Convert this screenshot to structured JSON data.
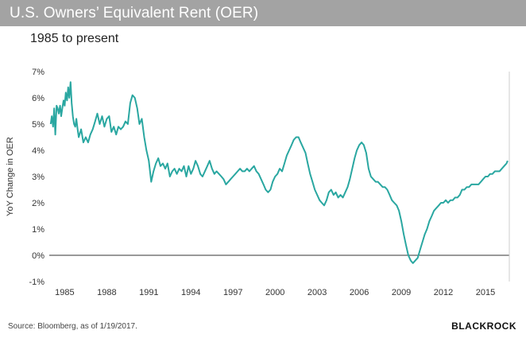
{
  "header": {
    "title": "U.S. Owners’ Equivalent Rent (OER)",
    "subtitle": "1985 to present"
  },
  "footer": {
    "source": "Source: Bloomberg, as of 1/19/2017.",
    "brand": "BlackRock"
  },
  "colors": {
    "line": "#2aa7a1",
    "title_bar": "#a3a3a3",
    "zero_line": "#333333"
  },
  "chart_data": {
    "type": "line",
    "title": "U.S. Owners’ Equivalent Rent (OER)",
    "subtitle": "1985 to present",
    "ylabel": "YoY Change in OER",
    "xlabel": "",
    "xlim": [
      1983.9,
      2016.7
    ],
    "ylim": [
      -1,
      7
    ],
    "x_ticks": [
      1985,
      1988,
      1991,
      1994,
      1997,
      2000,
      2003,
      2006,
      2009,
      2012,
      2015
    ],
    "x_tick_labels": [
      "1985",
      "1988",
      "1991",
      "1994",
      "1997",
      "2000",
      "2003",
      "2006",
      "2009",
      "2012",
      "2015"
    ],
    "y_ticks": [
      -1,
      0,
      1,
      2,
      3,
      4,
      5,
      6,
      7
    ],
    "y_tick_labels": [
      "-1%",
      "0%",
      "1%",
      "2%",
      "3%",
      "4%",
      "5%",
      "6%",
      "7%"
    ],
    "grid": false,
    "zero_line": true,
    "series": [
      {
        "values": [
          [
            1984.0,
            5.0
          ],
          [
            1984.08,
            5.3
          ],
          [
            1984.17,
            4.9
          ],
          [
            1984.25,
            5.6
          ],
          [
            1984.33,
            4.6
          ],
          [
            1984.42,
            5.7
          ],
          [
            1984.5,
            5.6
          ],
          [
            1984.58,
            5.4
          ],
          [
            1984.67,
            5.7
          ],
          [
            1984.75,
            5.3
          ],
          [
            1984.83,
            5.6
          ],
          [
            1984.92,
            5.9
          ],
          [
            1985.0,
            5.7
          ],
          [
            1985.08,
            6.2
          ],
          [
            1985.17,
            5.9
          ],
          [
            1985.25,
            6.4
          ],
          [
            1985.33,
            6.0
          ],
          [
            1985.42,
            6.6
          ],
          [
            1985.5,
            5.8
          ],
          [
            1985.58,
            5.3
          ],
          [
            1985.67,
            5.0
          ],
          [
            1985.75,
            4.9
          ],
          [
            1985.83,
            5.2
          ],
          [
            1985.92,
            4.8
          ],
          [
            1986.0,
            4.5
          ],
          [
            1986.17,
            4.8
          ],
          [
            1986.33,
            4.3
          ],
          [
            1986.5,
            4.5
          ],
          [
            1986.67,
            4.3
          ],
          [
            1986.83,
            4.6
          ],
          [
            1987.0,
            4.8
          ],
          [
            1987.17,
            5.1
          ],
          [
            1987.33,
            5.4
          ],
          [
            1987.5,
            5.0
          ],
          [
            1987.67,
            5.3
          ],
          [
            1987.83,
            4.9
          ],
          [
            1988.0,
            5.2
          ],
          [
            1988.17,
            5.3
          ],
          [
            1988.33,
            4.7
          ],
          [
            1988.5,
            4.9
          ],
          [
            1988.67,
            4.6
          ],
          [
            1988.83,
            4.9
          ],
          [
            1989.0,
            4.8
          ],
          [
            1989.17,
            4.9
          ],
          [
            1989.33,
            5.1
          ],
          [
            1989.5,
            5.0
          ],
          [
            1989.67,
            5.8
          ],
          [
            1989.83,
            6.1
          ],
          [
            1990.0,
            6.0
          ],
          [
            1990.17,
            5.6
          ],
          [
            1990.33,
            5.0
          ],
          [
            1990.5,
            5.2
          ],
          [
            1990.67,
            4.5
          ],
          [
            1990.83,
            4.0
          ],
          [
            1991.0,
            3.6
          ],
          [
            1991.17,
            2.8
          ],
          [
            1991.33,
            3.2
          ],
          [
            1991.5,
            3.5
          ],
          [
            1991.67,
            3.7
          ],
          [
            1991.83,
            3.4
          ],
          [
            1992.0,
            3.5
          ],
          [
            1992.17,
            3.3
          ],
          [
            1992.33,
            3.5
          ],
          [
            1992.5,
            3.0
          ],
          [
            1992.67,
            3.2
          ],
          [
            1992.83,
            3.3
          ],
          [
            1993.0,
            3.1
          ],
          [
            1993.17,
            3.3
          ],
          [
            1993.33,
            3.2
          ],
          [
            1993.5,
            3.4
          ],
          [
            1993.67,
            3.0
          ],
          [
            1993.83,
            3.4
          ],
          [
            1994.0,
            3.1
          ],
          [
            1994.17,
            3.3
          ],
          [
            1994.33,
            3.6
          ],
          [
            1994.5,
            3.4
          ],
          [
            1994.67,
            3.1
          ],
          [
            1994.83,
            3.0
          ],
          [
            1995.0,
            3.2
          ],
          [
            1995.17,
            3.4
          ],
          [
            1995.33,
            3.6
          ],
          [
            1995.5,
            3.3
          ],
          [
            1995.67,
            3.1
          ],
          [
            1995.83,
            3.2
          ],
          [
            1996.0,
            3.1
          ],
          [
            1996.17,
            3.0
          ],
          [
            1996.33,
            2.9
          ],
          [
            1996.5,
            2.7
          ],
          [
            1996.67,
            2.8
          ],
          [
            1996.83,
            2.9
          ],
          [
            1997.0,
            3.0
          ],
          [
            1997.17,
            3.1
          ],
          [
            1997.33,
            3.2
          ],
          [
            1997.5,
            3.3
          ],
          [
            1997.67,
            3.2
          ],
          [
            1997.83,
            3.2
          ],
          [
            1998.0,
            3.3
          ],
          [
            1998.17,
            3.2
          ],
          [
            1998.33,
            3.3
          ],
          [
            1998.5,
            3.4
          ],
          [
            1998.67,
            3.2
          ],
          [
            1998.83,
            3.1
          ],
          [
            1999.0,
            2.9
          ],
          [
            1999.17,
            2.7
          ],
          [
            1999.33,
            2.5
          ],
          [
            1999.5,
            2.4
          ],
          [
            1999.67,
            2.5
          ],
          [
            1999.83,
            2.8
          ],
          [
            2000.0,
            3.0
          ],
          [
            2000.17,
            3.1
          ],
          [
            2000.33,
            3.3
          ],
          [
            2000.5,
            3.2
          ],
          [
            2000.67,
            3.5
          ],
          [
            2000.83,
            3.8
          ],
          [
            2001.0,
            4.0
          ],
          [
            2001.17,
            4.2
          ],
          [
            2001.33,
            4.4
          ],
          [
            2001.5,
            4.5
          ],
          [
            2001.67,
            4.5
          ],
          [
            2001.83,
            4.3
          ],
          [
            2002.0,
            4.1
          ],
          [
            2002.17,
            3.9
          ],
          [
            2002.33,
            3.5
          ],
          [
            2002.5,
            3.1
          ],
          [
            2002.67,
            2.8
          ],
          [
            2002.83,
            2.5
          ],
          [
            2003.0,
            2.3
          ],
          [
            2003.17,
            2.1
          ],
          [
            2003.33,
            2.0
          ],
          [
            2003.5,
            1.9
          ],
          [
            2003.67,
            2.1
          ],
          [
            2003.83,
            2.4
          ],
          [
            2004.0,
            2.5
          ],
          [
            2004.17,
            2.3
          ],
          [
            2004.33,
            2.4
          ],
          [
            2004.5,
            2.2
          ],
          [
            2004.67,
            2.3
          ],
          [
            2004.83,
            2.2
          ],
          [
            2005.0,
            2.4
          ],
          [
            2005.17,
            2.6
          ],
          [
            2005.33,
            2.9
          ],
          [
            2005.5,
            3.3
          ],
          [
            2005.67,
            3.7
          ],
          [
            2005.83,
            4.0
          ],
          [
            2006.0,
            4.2
          ],
          [
            2006.17,
            4.3
          ],
          [
            2006.33,
            4.2
          ],
          [
            2006.5,
            3.9
          ],
          [
            2006.67,
            3.3
          ],
          [
            2006.83,
            3.0
          ],
          [
            2007.0,
            2.9
          ],
          [
            2007.17,
            2.8
          ],
          [
            2007.33,
            2.8
          ],
          [
            2007.5,
            2.7
          ],
          [
            2007.67,
            2.6
          ],
          [
            2007.83,
            2.6
          ],
          [
            2008.0,
            2.5
          ],
          [
            2008.17,
            2.3
          ],
          [
            2008.33,
            2.1
          ],
          [
            2008.5,
            2.0
          ],
          [
            2008.67,
            1.9
          ],
          [
            2008.83,
            1.7
          ],
          [
            2009.0,
            1.3
          ],
          [
            2009.17,
            0.8
          ],
          [
            2009.33,
            0.4
          ],
          [
            2009.5,
            0.0
          ],
          [
            2009.67,
            -0.2
          ],
          [
            2009.83,
            -0.3
          ],
          [
            2010.0,
            -0.2
          ],
          [
            2010.17,
            -0.1
          ],
          [
            2010.33,
            0.2
          ],
          [
            2010.5,
            0.5
          ],
          [
            2010.67,
            0.8
          ],
          [
            2010.83,
            1.0
          ],
          [
            2011.0,
            1.3
          ],
          [
            2011.17,
            1.5
          ],
          [
            2011.33,
            1.7
          ],
          [
            2011.5,
            1.8
          ],
          [
            2011.67,
            1.9
          ],
          [
            2011.83,
            2.0
          ],
          [
            2012.0,
            2.0
          ],
          [
            2012.17,
            2.1
          ],
          [
            2012.33,
            2.0
          ],
          [
            2012.5,
            2.1
          ],
          [
            2012.67,
            2.1
          ],
          [
            2012.83,
            2.2
          ],
          [
            2013.0,
            2.2
          ],
          [
            2013.17,
            2.3
          ],
          [
            2013.33,
            2.5
          ],
          [
            2013.5,
            2.5
          ],
          [
            2013.67,
            2.6
          ],
          [
            2013.83,
            2.6
          ],
          [
            2014.0,
            2.7
          ],
          [
            2014.17,
            2.7
          ],
          [
            2014.33,
            2.7
          ],
          [
            2014.5,
            2.7
          ],
          [
            2014.67,
            2.8
          ],
          [
            2014.83,
            2.9
          ],
          [
            2015.0,
            3.0
          ],
          [
            2015.17,
            3.0
          ],
          [
            2015.33,
            3.1
          ],
          [
            2015.5,
            3.1
          ],
          [
            2015.67,
            3.2
          ],
          [
            2015.83,
            3.2
          ],
          [
            2016.0,
            3.2
          ],
          [
            2016.17,
            3.3
          ],
          [
            2016.33,
            3.4
          ],
          [
            2016.5,
            3.5
          ],
          [
            2016.58,
            3.6
          ]
        ]
      }
    ]
  }
}
